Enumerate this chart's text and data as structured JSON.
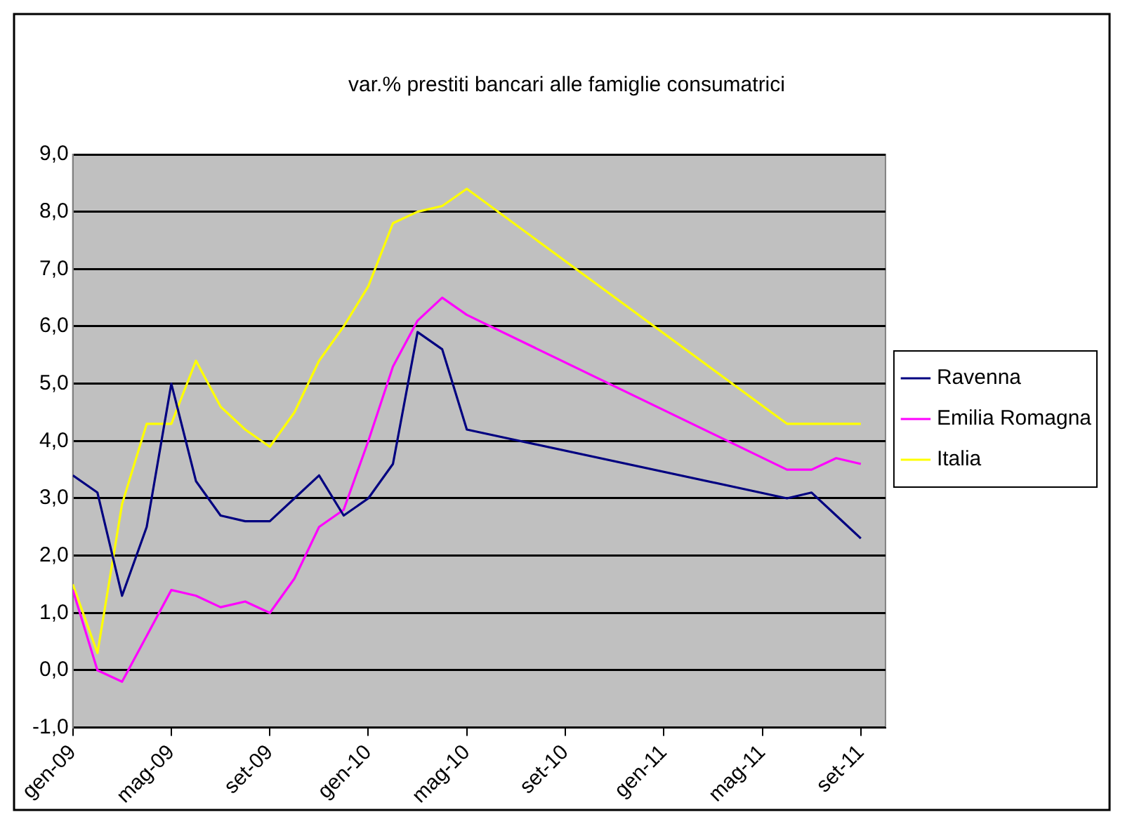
{
  "chart_data": {
    "type": "line",
    "title": "var.% prestiti bancari alle famiglie consumatrici",
    "x": [
      "2009-01",
      "2009-02",
      "2009-03",
      "2009-04",
      "2009-05",
      "2009-06",
      "2009-07",
      "2009-08",
      "2009-09",
      "2009-10",
      "2009-11",
      "2009-12",
      "2010-01",
      "2010-02",
      "2010-03",
      "2010-04",
      "2010-05",
      "2011-06",
      "2011-07",
      "2011-08",
      "2011-09"
    ],
    "series": [
      {
        "name": "Ravenna",
        "color": "#000080",
        "values": [
          3.4,
          3.1,
          1.3,
          2.5,
          5.0,
          3.3,
          2.7,
          2.6,
          2.6,
          3.0,
          3.4,
          2.7,
          3.0,
          3.6,
          5.9,
          5.6,
          4.2,
          3.0,
          3.1,
          2.7,
          2.3
        ]
      },
      {
        "name": "Emilia Romagna",
        "color": "#ff00ff",
        "values": [
          1.4,
          0.0,
          -0.2,
          0.6,
          1.4,
          1.3,
          1.1,
          1.2,
          1.0,
          1.6,
          2.5,
          2.8,
          4.0,
          5.3,
          6.1,
          6.5,
          6.2,
          3.5,
          3.5,
          3.7,
          3.6
        ]
      },
      {
        "name": "Italia",
        "color": "#ffff00",
        "values": [
          1.5,
          0.3,
          2.9,
          4.3,
          4.3,
          5.4,
          4.6,
          4.2,
          3.9,
          4.5,
          5.4,
          6.0,
          6.7,
          7.8,
          8.0,
          8.1,
          8.4,
          4.3,
          4.3,
          4.3,
          4.3
        ]
      }
    ],
    "xlim": [
      "2009-01",
      "2011-10"
    ],
    "xticks": [
      {
        "value": "2009-01",
        "label": "gen-09"
      },
      {
        "value": "2009-05",
        "label": "mag-09"
      },
      {
        "value": "2009-09",
        "label": "set-09"
      },
      {
        "value": "2010-01",
        "label": "gen-10"
      },
      {
        "value": "2010-05",
        "label": "mag-10"
      },
      {
        "value": "2010-09",
        "label": "set-10"
      },
      {
        "value": "2011-01",
        "label": "gen-11"
      },
      {
        "value": "2011-05",
        "label": "mag-11"
      },
      {
        "value": "2011-09",
        "label": "set-11"
      }
    ],
    "ylim": [
      -1,
      9
    ],
    "yticks": [
      {
        "value": -1,
        "label": "-1,0"
      },
      {
        "value": 0,
        "label": "0,0"
      },
      {
        "value": 1,
        "label": "1,0"
      },
      {
        "value": 2,
        "label": "2,0"
      },
      {
        "value": 3,
        "label": "3,0"
      },
      {
        "value": 4,
        "label": "4,0"
      },
      {
        "value": 5,
        "label": "5,0"
      },
      {
        "value": 6,
        "label": "6,0"
      },
      {
        "value": 7,
        "label": "7,0"
      },
      {
        "value": 8,
        "label": "8,0"
      },
      {
        "value": 9,
        "label": "9,0"
      }
    ],
    "grid": "y",
    "legend": "right",
    "marker": "none",
    "line_style": "solid"
  }
}
